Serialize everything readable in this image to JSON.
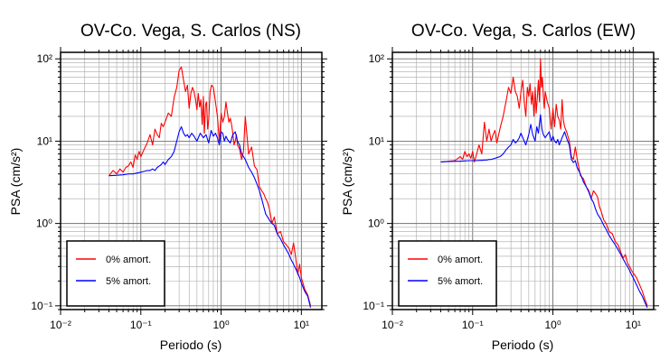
{
  "chart_data": [
    {
      "type": "line",
      "title": "OV-Co. Vega, S. Carlos (NS)",
      "xlabel": "Periodo (s)",
      "ylabel": "PSA (cm/s²)",
      "xscale": "log",
      "yscale": "log",
      "xlim": [
        0.01,
        18
      ],
      "ylim": [
        0.09,
        120
      ],
      "xticks": [
        0.01,
        0.1,
        1,
        10
      ],
      "xtick_labels": [
        "10⁻²",
        "10⁻¹",
        "10⁰",
        "10¹"
      ],
      "yticks": [
        0.1,
        1,
        10,
        100
      ],
      "ytick_labels": [
        "10⁻¹",
        "10⁰",
        "10¹",
        "10²"
      ],
      "grid": true,
      "legend_position": "bottom-left",
      "series": [
        {
          "name": "0% amort.",
          "color": "#ff0000",
          "x": [
            0.04,
            0.045,
            0.05,
            0.055,
            0.06,
            0.065,
            0.07,
            0.075,
            0.08,
            0.085,
            0.09,
            0.095,
            0.1,
            0.11,
            0.12,
            0.13,
            0.14,
            0.15,
            0.16,
            0.17,
            0.18,
            0.19,
            0.2,
            0.22,
            0.24,
            0.26,
            0.28,
            0.3,
            0.32,
            0.34,
            0.36,
            0.38,
            0.4,
            0.42,
            0.44,
            0.46,
            0.48,
            0.5,
            0.52,
            0.54,
            0.56,
            0.58,
            0.6,
            0.62,
            0.64,
            0.66,
            0.68,
            0.7,
            0.73,
            0.76,
            0.8,
            0.85,
            0.9,
            0.95,
            1.0,
            1.05,
            1.1,
            1.15,
            1.2,
            1.25,
            1.3,
            1.35,
            1.4,
            1.45,
            1.5,
            1.55,
            1.6,
            1.7,
            1.8,
            1.9,
            2.0,
            2.2,
            2.4,
            2.6,
            2.8,
            3.0,
            3.2,
            3.4,
            3.6,
            3.8,
            4.0,
            4.3,
            4.6,
            5.0,
            5.5,
            6.0,
            6.5,
            7.0,
            7.5,
            8.0,
            8.5,
            9.0,
            9.5,
            10.0,
            11.0,
            12.0,
            13.0
          ],
          "y": [
            3.8,
            4.4,
            4.0,
            4.6,
            4.2,
            4.8,
            5.0,
            5.6,
            4.8,
            6.8,
            6.0,
            7.5,
            6.5,
            8.0,
            9.5,
            12.0,
            9.0,
            14.0,
            12.0,
            11.0,
            16.5,
            15.0,
            17.0,
            22.0,
            20.0,
            34.0,
            45.0,
            72.0,
            80.0,
            55.0,
            40.0,
            48.0,
            25.0,
            38.0,
            45.0,
            40.0,
            32.0,
            24.0,
            38.0,
            26.0,
            32.0,
            16.0,
            35.0,
            12.5,
            28.0,
            30.0,
            14.0,
            18.0,
            40.0,
            48.0,
            45.0,
            30.0,
            20.0,
            10.0,
            22.0,
            17.0,
            20.0,
            30.0,
            22.0,
            17.0,
            19.0,
            16.0,
            12.5,
            9.0,
            10.0,
            12.0,
            9.0,
            8.0,
            6.0,
            7.5,
            20.0,
            7.0,
            8.5,
            5.0,
            4.5,
            2.8,
            2.5,
            2.3,
            2.0,
            1.8,
            1.5,
            1.0,
            1.2,
            0.75,
            0.8,
            0.6,
            0.55,
            0.5,
            0.42,
            0.58,
            0.38,
            0.24,
            0.32,
            0.22,
            0.16,
            0.135,
            0.1
          ]
        },
        {
          "name": "5% amort.",
          "color": "#0000ff",
          "x": [
            0.04,
            0.05,
            0.06,
            0.07,
            0.08,
            0.09,
            0.1,
            0.11,
            0.12,
            0.13,
            0.14,
            0.15,
            0.16,
            0.17,
            0.18,
            0.19,
            0.2,
            0.22,
            0.24,
            0.26,
            0.28,
            0.3,
            0.32,
            0.34,
            0.36,
            0.38,
            0.4,
            0.43,
            0.46,
            0.5,
            0.55,
            0.6,
            0.65,
            0.7,
            0.75,
            0.8,
            0.85,
            0.9,
            0.95,
            1.0,
            1.05,
            1.1,
            1.15,
            1.2,
            1.3,
            1.4,
            1.5,
            1.6,
            1.7,
            1.8,
            1.9,
            2.0,
            2.2,
            2.4,
            2.6,
            2.8,
            3.0,
            3.2,
            3.4,
            3.6,
            3.8,
            4.0,
            4.3,
            4.6,
            5.0,
            5.5,
            6.0,
            6.5,
            7.0,
            7.5,
            8.0,
            8.5,
            9.0,
            9.5,
            10.0,
            11.0,
            12.0,
            13.0
          ],
          "y": [
            3.8,
            3.85,
            3.9,
            4.0,
            4.0,
            4.1,
            4.2,
            4.3,
            4.4,
            4.4,
            4.6,
            4.4,
            4.8,
            5.0,
            5.2,
            5.6,
            5.2,
            6.0,
            6.5,
            7.5,
            10.0,
            13.0,
            15.0,
            12.5,
            11.5,
            12.0,
            11.0,
            12.5,
            11.5,
            10.0,
            12.5,
            11.0,
            12.0,
            9.5,
            13.5,
            11.5,
            12.5,
            11.0,
            9.0,
            13.0,
            12.5,
            10.0,
            11.5,
            10.5,
            9.5,
            12.0,
            13.0,
            10.0,
            9.0,
            7.0,
            6.5,
            6.0,
            4.8,
            4.2,
            3.6,
            3.0,
            2.5,
            2.0,
            1.6,
            1.3,
            1.2,
            1.1,
            1.0,
            0.95,
            0.75,
            0.65,
            0.55,
            0.48,
            0.42,
            0.36,
            0.32,
            0.28,
            0.25,
            0.22,
            0.19,
            0.15,
            0.13,
            0.095
          ]
        }
      ]
    },
    {
      "type": "line",
      "title": "OV-Co. Vega, S. Carlos (EW)",
      "xlabel": "Periodo (s)",
      "ylabel": "PSA (cm/s²)",
      "xscale": "log",
      "yscale": "log",
      "xlim": [
        0.01,
        18
      ],
      "ylim": [
        0.09,
        120
      ],
      "xticks": [
        0.01,
        0.1,
        1,
        10
      ],
      "xtick_labels": [
        "10⁻²",
        "10⁻¹",
        "10⁰",
        "10¹"
      ],
      "yticks": [
        0.1,
        1,
        10,
        100
      ],
      "ytick_labels": [
        "10⁻¹",
        "10⁰",
        "10¹",
        "10²"
      ],
      "grid": true,
      "legend_position": "bottom-left",
      "series": [
        {
          "name": "0% amort.",
          "color": "#ff0000",
          "x": [
            0.04,
            0.05,
            0.06,
            0.07,
            0.075,
            0.08,
            0.085,
            0.09,
            0.095,
            0.1,
            0.105,
            0.11,
            0.12,
            0.13,
            0.14,
            0.15,
            0.16,
            0.17,
            0.18,
            0.19,
            0.2,
            0.22,
            0.24,
            0.26,
            0.28,
            0.3,
            0.32,
            0.34,
            0.36,
            0.38,
            0.4,
            0.42,
            0.44,
            0.46,
            0.48,
            0.5,
            0.52,
            0.54,
            0.56,
            0.58,
            0.6,
            0.62,
            0.64,
            0.66,
            0.68,
            0.7,
            0.72,
            0.74,
            0.76,
            0.78,
            0.8,
            0.85,
            0.9,
            0.95,
            1.0,
            1.05,
            1.1,
            1.15,
            1.2,
            1.25,
            1.3,
            1.35,
            1.4,
            1.5,
            1.6,
            1.7,
            1.8,
            1.9,
            2.0,
            2.2,
            2.4,
            2.6,
            2.8,
            3.0,
            3.2,
            3.4,
            3.6,
            3.8,
            4.0,
            4.3,
            4.6,
            5.0,
            5.5,
            6.0,
            6.5,
            7.0,
            7.5,
            8.0,
            8.5,
            9.0,
            9.5,
            10.0,
            11.0,
            12.0,
            13.0,
            14.0,
            15.0
          ],
          "y": [
            5.6,
            5.7,
            5.8,
            6.5,
            6.0,
            7.5,
            6.5,
            7.0,
            6.2,
            7.5,
            5.6,
            6.5,
            9.0,
            7.0,
            17.0,
            10.0,
            14.0,
            10.0,
            12.0,
            13.5,
            9.5,
            14.5,
            20.0,
            30.0,
            45.0,
            38.0,
            60.0,
            40.0,
            35.0,
            25.0,
            40.0,
            55.0,
            30.0,
            20.0,
            45.0,
            35.0,
            50.0,
            28.0,
            40.0,
            20.0,
            45.0,
            22.0,
            35.0,
            55.0,
            30.0,
            100.0,
            45.0,
            60.0,
            35.0,
            25.0,
            40.0,
            30.0,
            25.0,
            14.0,
            25.0,
            15.0,
            28.0,
            20.0,
            18.0,
            14.0,
            32.0,
            18.0,
            15.0,
            12.5,
            10.0,
            6.5,
            6.0,
            8.5,
            6.2,
            3.8,
            3.5,
            2.8,
            2.5,
            2.0,
            2.5,
            2.3,
            2.1,
            1.6,
            1.4,
            1.1,
            1.0,
            0.8,
            0.75,
            0.6,
            0.55,
            0.45,
            0.38,
            0.42,
            0.33,
            0.3,
            0.27,
            0.25,
            0.22,
            0.18,
            0.15,
            0.12,
            0.1
          ]
        },
        {
          "name": "5% amort.",
          "color": "#0000ff",
          "x": [
            0.04,
            0.05,
            0.06,
            0.07,
            0.08,
            0.09,
            0.1,
            0.11,
            0.12,
            0.13,
            0.14,
            0.15,
            0.16,
            0.17,
            0.18,
            0.19,
            0.2,
            0.22,
            0.24,
            0.26,
            0.28,
            0.3,
            0.32,
            0.34,
            0.36,
            0.38,
            0.4,
            0.43,
            0.46,
            0.5,
            0.53,
            0.56,
            0.6,
            0.63,
            0.66,
            0.7,
            0.73,
            0.76,
            0.8,
            0.85,
            0.9,
            0.95,
            1.0,
            1.05,
            1.1,
            1.15,
            1.2,
            1.3,
            1.4,
            1.5,
            1.6,
            1.7,
            1.8,
            1.9,
            2.0,
            2.2,
            2.4,
            2.6,
            2.8,
            3.0,
            3.2,
            3.4,
            3.6,
            3.8,
            4.0,
            4.3,
            4.6,
            5.0,
            5.5,
            6.0,
            6.5,
            7.0,
            7.5,
            8.0,
            8.5,
            9.0,
            9.5,
            10.0,
            11.0,
            12.0,
            13.0,
            14.0,
            15.0
          ],
          "y": [
            5.6,
            5.65,
            5.7,
            5.7,
            5.75,
            5.8,
            5.8,
            5.8,
            5.85,
            5.85,
            5.9,
            5.9,
            6.0,
            6.0,
            6.1,
            6.2,
            6.3,
            6.5,
            7.0,
            7.8,
            8.5,
            9.0,
            10.5,
            9.5,
            10.0,
            11.0,
            12.5,
            10.5,
            9.0,
            12.0,
            16.0,
            12.0,
            10.0,
            15.0,
            12.5,
            21.0,
            14.0,
            12.0,
            11.0,
            12.0,
            13.0,
            10.0,
            11.5,
            10.0,
            9.5,
            10.5,
            9.0,
            11.0,
            13.0,
            10.5,
            9.0,
            6.0,
            5.5,
            5.8,
            4.8,
            4.0,
            3.2,
            2.8,
            2.4,
            2.0,
            1.8,
            1.5,
            1.3,
            1.2,
            1.1,
            0.95,
            0.85,
            0.72,
            0.62,
            0.55,
            0.48,
            0.42,
            0.37,
            0.33,
            0.3,
            0.27,
            0.24,
            0.22,
            0.18,
            0.15,
            0.13,
            0.11,
            0.095
          ]
        }
      ]
    }
  ]
}
